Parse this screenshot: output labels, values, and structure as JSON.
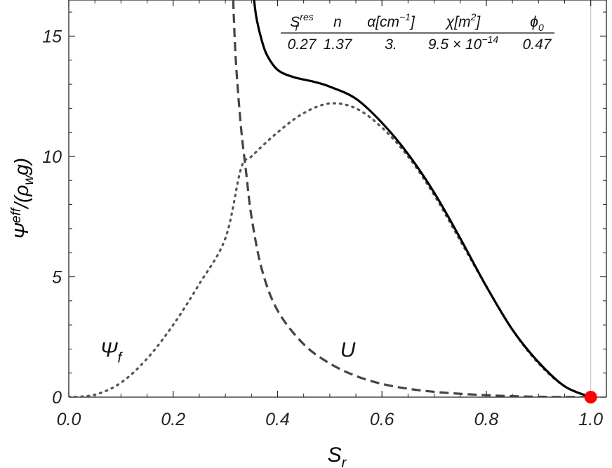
{
  "chart_data": {
    "type": "line",
    "title": "",
    "xlabel": {
      "base": "S",
      "sub": "r"
    },
    "ylabel": {
      "base": "Ψ",
      "sup": "eff",
      "after": "/(ρ",
      "sub": "w",
      "tail": "g)"
    },
    "xlim": [
      0,
      1.03
    ],
    "ylim": [
      0,
      16.5
    ],
    "x_ticks": [
      0.0,
      0.2,
      0.4,
      0.6,
      0.8,
      1.0
    ],
    "x_tick_labels": [
      "0.0",
      "0.2",
      "0.4",
      "0.6",
      "0.8",
      "1.0"
    ],
    "y_ticks": [
      0,
      5,
      10,
      15
    ],
    "y_tick_labels": [
      "0",
      "5",
      "10",
      "15"
    ],
    "grid": false,
    "series": [
      {
        "name": "Ψ_f",
        "style": "dotted",
        "color": "#555555",
        "points": [
          [
            0.0,
            0.0
          ],
          [
            0.05,
            0.1
          ],
          [
            0.1,
            0.6
          ],
          [
            0.15,
            1.6
          ],
          [
            0.2,
            3.0
          ],
          [
            0.25,
            4.7
          ],
          [
            0.3,
            6.6
          ],
          [
            0.33,
            9.5
          ],
          [
            0.35,
            10.0
          ],
          [
            0.4,
            11.0
          ],
          [
            0.45,
            11.8
          ],
          [
            0.5,
            12.2
          ],
          [
            0.55,
            12.0
          ],
          [
            0.6,
            11.2
          ],
          [
            0.65,
            10.0
          ],
          [
            0.7,
            8.4
          ],
          [
            0.75,
            6.5
          ],
          [
            0.8,
            4.6
          ],
          [
            0.85,
            2.8
          ],
          [
            0.9,
            1.4
          ],
          [
            0.95,
            0.45
          ],
          [
            1.0,
            0.0
          ]
        ]
      },
      {
        "name": "U",
        "style": "dashed",
        "color": "#444444",
        "points": [
          [
            0.315,
            16.5
          ],
          [
            0.32,
            14.0
          ],
          [
            0.33,
            11.2
          ],
          [
            0.34,
            9.3
          ],
          [
            0.35,
            7.5
          ],
          [
            0.37,
            5.3
          ],
          [
            0.4,
            3.6
          ],
          [
            0.45,
            2.2
          ],
          [
            0.5,
            1.4
          ],
          [
            0.55,
            0.88
          ],
          [
            0.6,
            0.55
          ],
          [
            0.65,
            0.35
          ],
          [
            0.7,
            0.22
          ],
          [
            0.75,
            0.14
          ],
          [
            0.8,
            0.08
          ],
          [
            0.85,
            0.04
          ],
          [
            0.9,
            0.015
          ],
          [
            0.95,
            0.005
          ],
          [
            1.0,
            0.0
          ]
        ]
      },
      {
        "name": "",
        "style": "solid",
        "color": "#000000",
        "points": [
          [
            0.355,
            16.5
          ],
          [
            0.36,
            15.7
          ],
          [
            0.37,
            14.8
          ],
          [
            0.38,
            14.2
          ],
          [
            0.4,
            13.6
          ],
          [
            0.43,
            13.3
          ],
          [
            0.47,
            13.1
          ],
          [
            0.5,
            12.9
          ],
          [
            0.55,
            12.4
          ],
          [
            0.6,
            11.4
          ],
          [
            0.65,
            10.1
          ],
          [
            0.7,
            8.5
          ],
          [
            0.75,
            6.6
          ],
          [
            0.8,
            4.6
          ],
          [
            0.85,
            2.8
          ],
          [
            0.9,
            1.45
          ],
          [
            0.95,
            0.45
          ],
          [
            1.0,
            0.0
          ]
        ]
      }
    ],
    "annotations": [
      {
        "text": "Ψ",
        "sub": "f",
        "x": 0.06,
        "y": 2.0
      },
      {
        "text": "U",
        "x": 0.52,
        "y": 2.0
      }
    ],
    "marker": {
      "x": 1.0,
      "y": 0.0,
      "color": "#ff0000"
    },
    "vline_x": 1.0,
    "params": [
      {
        "name": "S",
        "sub": "r",
        "sup": "res",
        "value": "0.27"
      },
      {
        "name": "n",
        "value": "1.37"
      },
      {
        "name": "α[cm",
        "sup": "−1",
        "after": "]",
        "value": "3."
      },
      {
        "name": "χ[m",
        "sup": "2",
        "after": "]",
        "value": "9.5 × 10",
        "value_sup": "−14"
      },
      {
        "name": "ϕ",
        "sub": "0",
        "value": "0.47"
      }
    ]
  }
}
